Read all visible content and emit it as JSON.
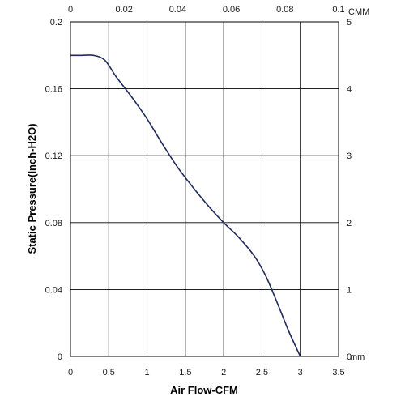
{
  "chart_data": {
    "type": "line",
    "title": "",
    "xlabel": "Air Flow-CFM",
    "ylabel": "Static Pressure(Inch-H2O)",
    "xlim": [
      0,
      3.5
    ],
    "ylim": [
      0,
      0.2
    ],
    "x_ticks": [
      "0",
      "0.5",
      "1",
      "1.5",
      "2",
      "2.5",
      "3",
      "3.5"
    ],
    "y_ticks": [
      "0",
      "0.04",
      "0.08",
      "0.12",
      "0.16",
      "0.2"
    ],
    "top_axis": {
      "label": "CMM",
      "range": [
        0,
        0.1
      ],
      "ticks": [
        "0",
        "0.02",
        "0.04",
        "0.06",
        "0.08",
        "0.1"
      ]
    },
    "right_axis": {
      "label": "mm",
      "range": [
        0,
        5
      ],
      "ticks": [
        "0",
        "1",
        "2",
        "3",
        "4",
        "5"
      ]
    },
    "grid": true,
    "line_color": "#1f2a5a",
    "series": [
      {
        "x": [
          0,
          0.15,
          0.3,
          0.45,
          0.6,
          0.8,
          1.0,
          1.2,
          1.4,
          1.6,
          1.8,
          2.0,
          2.2,
          2.4,
          2.55,
          2.7,
          2.85,
          3.0
        ],
        "y": [
          0.18,
          0.18,
          0.18,
          0.177,
          0.167,
          0.155,
          0.142,
          0.127,
          0.113,
          0.101,
          0.09,
          0.08,
          0.071,
          0.06,
          0.048,
          0.032,
          0.015,
          0.0
        ]
      }
    ]
  }
}
